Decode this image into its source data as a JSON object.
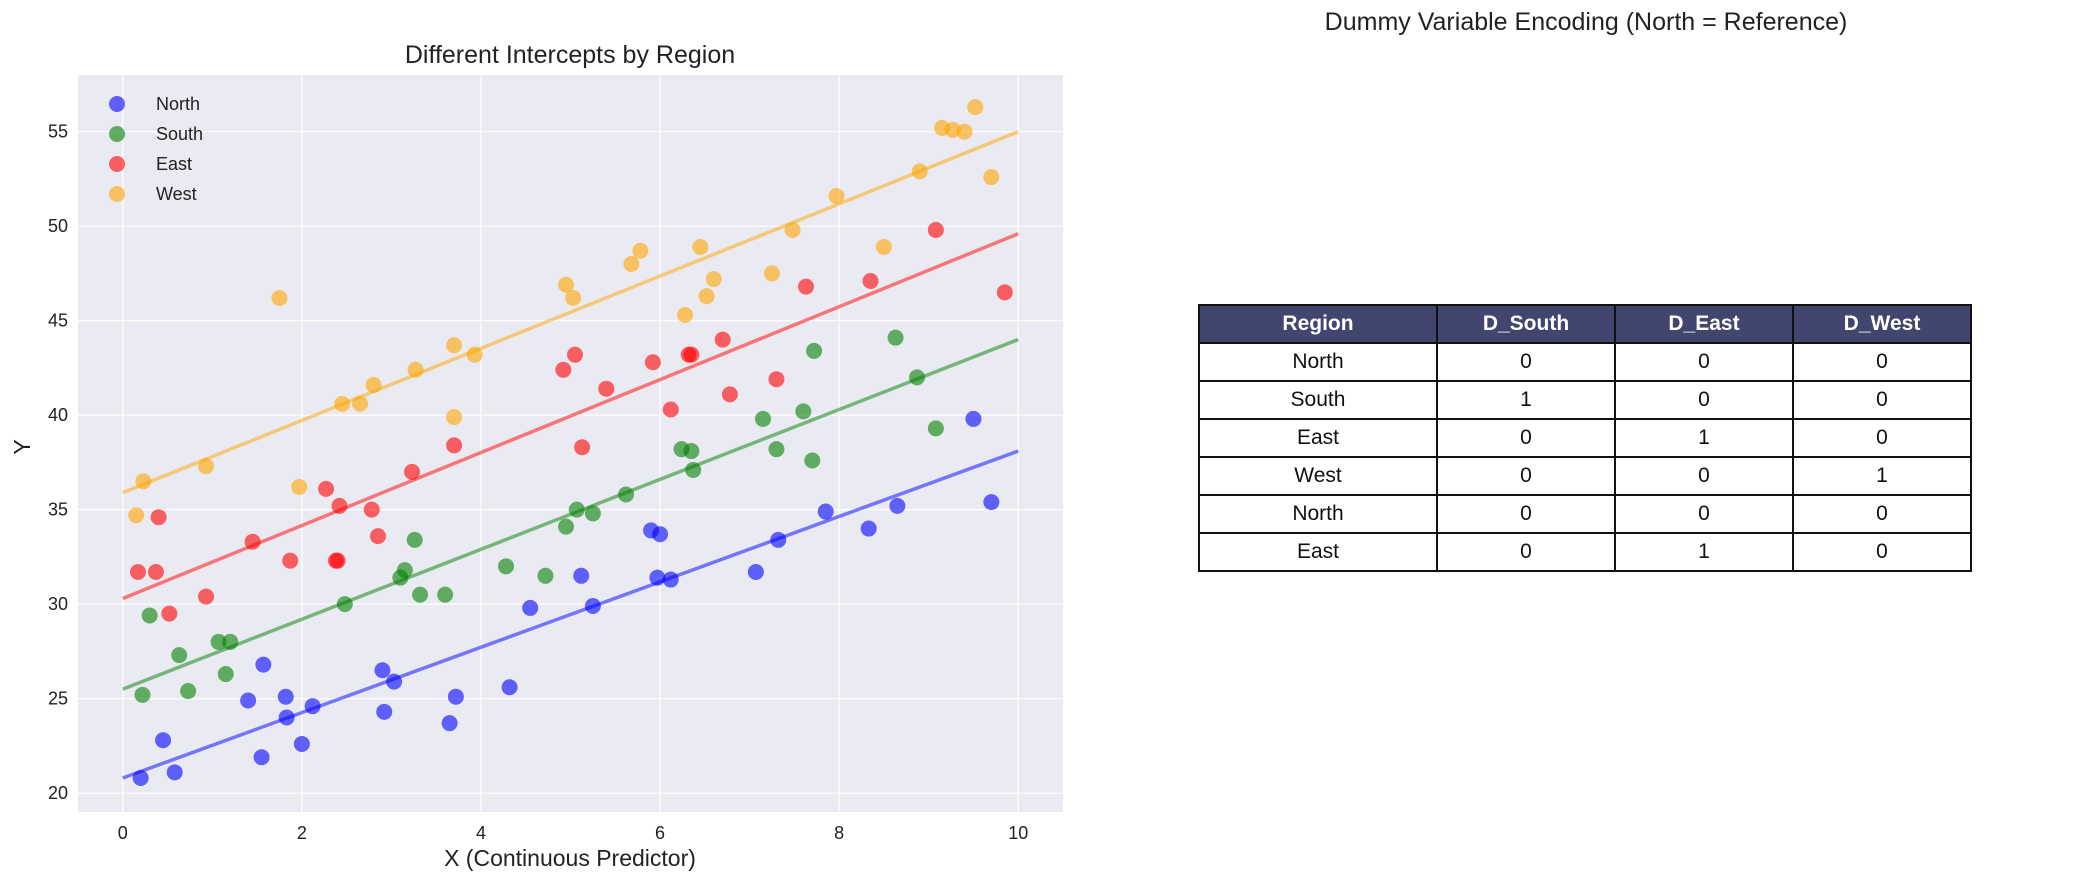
{
  "chart_data": {
    "type": "scatter",
    "title": "Different Intercepts by Region",
    "xlabel": "X (Continuous Predictor)",
    "ylabel": "Y",
    "xlim": [
      -0.5,
      10.5
    ],
    "ylim": [
      19,
      58
    ],
    "xticks": [
      0,
      2,
      4,
      6,
      8,
      10
    ],
    "yticks": [
      20,
      25,
      30,
      35,
      40,
      45,
      50,
      55
    ],
    "grid": true,
    "legend": "top-left",
    "series": [
      {
        "name": "North",
        "color": "#0000ff",
        "line": {
          "x": [
            0,
            10
          ],
          "y": [
            20.8,
            38.1
          ]
        },
        "points": [
          [
            0.2,
            20.8
          ],
          [
            0.45,
            22.8
          ],
          [
            0.58,
            21.1
          ],
          [
            1.4,
            24.9
          ],
          [
            1.55,
            21.9
          ],
          [
            1.57,
            26.8
          ],
          [
            1.82,
            25.1
          ],
          [
            1.83,
            24.0
          ],
          [
            2.0,
            22.6
          ],
          [
            2.12,
            24.6
          ],
          [
            2.9,
            26.5
          ],
          [
            2.92,
            24.3
          ],
          [
            3.03,
            25.9
          ],
          [
            3.65,
            23.7
          ],
          [
            3.72,
            25.1
          ],
          [
            4.32,
            25.6
          ],
          [
            4.55,
            29.8
          ],
          [
            5.12,
            31.5
          ],
          [
            5.25,
            29.9
          ],
          [
            5.9,
            33.9
          ],
          [
            5.97,
            31.4
          ],
          [
            6.0,
            33.7
          ],
          [
            6.12,
            31.3
          ],
          [
            7.07,
            31.7
          ],
          [
            7.32,
            33.4
          ],
          [
            7.85,
            34.9
          ],
          [
            8.33,
            34.0
          ],
          [
            8.65,
            35.2
          ],
          [
            9.5,
            39.8
          ],
          [
            9.7,
            35.4
          ]
        ]
      },
      {
        "name": "South",
        "color": "#008000",
        "line": {
          "x": [
            0,
            10
          ],
          "y": [
            25.5,
            44.0
          ]
        },
        "points": [
          [
            0.22,
            25.2
          ],
          [
            0.3,
            29.4
          ],
          [
            0.63,
            27.3
          ],
          [
            0.73,
            25.4
          ],
          [
            1.07,
            28.0
          ],
          [
            1.15,
            26.3
          ],
          [
            1.2,
            28.0
          ],
          [
            2.48,
            30.0
          ],
          [
            3.1,
            31.4
          ],
          [
            3.15,
            31.8
          ],
          [
            3.26,
            33.4
          ],
          [
            3.32,
            30.5
          ],
          [
            3.6,
            30.5
          ],
          [
            4.28,
            32.0
          ],
          [
            4.72,
            31.5
          ],
          [
            4.95,
            34.1
          ],
          [
            5.07,
            35.0
          ],
          [
            5.25,
            34.8
          ],
          [
            5.62,
            35.8
          ],
          [
            6.24,
            38.2
          ],
          [
            6.35,
            38.1
          ],
          [
            6.37,
            37.1
          ],
          [
            7.15,
            39.8
          ],
          [
            7.3,
            38.2
          ],
          [
            7.6,
            40.2
          ],
          [
            7.7,
            37.6
          ],
          [
            7.72,
            43.4
          ],
          [
            8.63,
            44.1
          ],
          [
            8.87,
            42.0
          ],
          [
            9.08,
            39.3
          ]
        ]
      },
      {
        "name": "East",
        "color": "#ff0000",
        "line": {
          "x": [
            0,
            10
          ],
          "y": [
            30.3,
            49.6
          ]
        },
        "points": [
          [
            0.17,
            31.7
          ],
          [
            0.37,
            31.7
          ],
          [
            0.4,
            34.6
          ],
          [
            0.52,
            29.5
          ],
          [
            0.93,
            30.4
          ],
          [
            1.45,
            33.3
          ],
          [
            1.87,
            32.3
          ],
          [
            2.27,
            36.1
          ],
          [
            2.38,
            32.3
          ],
          [
            2.4,
            32.3
          ],
          [
            2.42,
            35.2
          ],
          [
            2.78,
            35.0
          ],
          [
            2.85,
            33.6
          ],
          [
            3.23,
            37.0
          ],
          [
            3.7,
            38.4
          ],
          [
            4.92,
            42.4
          ],
          [
            5.05,
            43.2
          ],
          [
            5.13,
            38.3
          ],
          [
            5.4,
            41.4
          ],
          [
            5.92,
            42.8
          ],
          [
            6.12,
            40.3
          ],
          [
            6.32,
            43.2
          ],
          [
            6.35,
            43.2
          ],
          [
            6.7,
            44.0
          ],
          [
            6.78,
            41.1
          ],
          [
            7.3,
            41.9
          ],
          [
            7.63,
            46.8
          ],
          [
            8.35,
            47.1
          ],
          [
            9.08,
            49.8
          ],
          [
            9.85,
            46.5
          ]
        ]
      },
      {
        "name": "West",
        "color": "#ffa500",
        "line": {
          "x": [
            0,
            10
          ],
          "y": [
            35.9,
            55.0
          ]
        },
        "points": [
          [
            0.15,
            34.7
          ],
          [
            0.23,
            36.5
          ],
          [
            0.93,
            37.3
          ],
          [
            1.75,
            46.2
          ],
          [
            1.97,
            36.2
          ],
          [
            2.45,
            40.6
          ],
          [
            2.65,
            40.6
          ],
          [
            2.8,
            41.6
          ],
          [
            3.27,
            42.4
          ],
          [
            3.7,
            43.7
          ],
          [
            3.7,
            39.9
          ],
          [
            3.93,
            43.2
          ],
          [
            4.95,
            46.9
          ],
          [
            5.03,
            46.2
          ],
          [
            5.68,
            48.0
          ],
          [
            5.78,
            48.7
          ],
          [
            6.28,
            45.3
          ],
          [
            6.45,
            48.9
          ],
          [
            6.52,
            46.3
          ],
          [
            6.6,
            47.2
          ],
          [
            7.25,
            47.5
          ],
          [
            7.48,
            49.8
          ],
          [
            7.97,
            51.6
          ],
          [
            8.5,
            48.9
          ],
          [
            8.9,
            52.9
          ],
          [
            9.15,
            55.2
          ],
          [
            9.27,
            55.1
          ],
          [
            9.4,
            55.0
          ],
          [
            9.52,
            56.3
          ],
          [
            9.7,
            52.6
          ]
        ]
      }
    ]
  },
  "table": {
    "title": "Dummy Variable Encoding (North = Reference)",
    "columns": [
      "Region",
      "D_South",
      "D_East",
      "D_West"
    ],
    "rows": [
      [
        "North",
        "0",
        "0",
        "0"
      ],
      [
        "South",
        "1",
        "0",
        "0"
      ],
      [
        "East",
        "0",
        "1",
        "0"
      ],
      [
        "West",
        "0",
        "0",
        "1"
      ],
      [
        "North",
        "0",
        "0",
        "0"
      ],
      [
        "East",
        "0",
        "1",
        "0"
      ]
    ]
  }
}
